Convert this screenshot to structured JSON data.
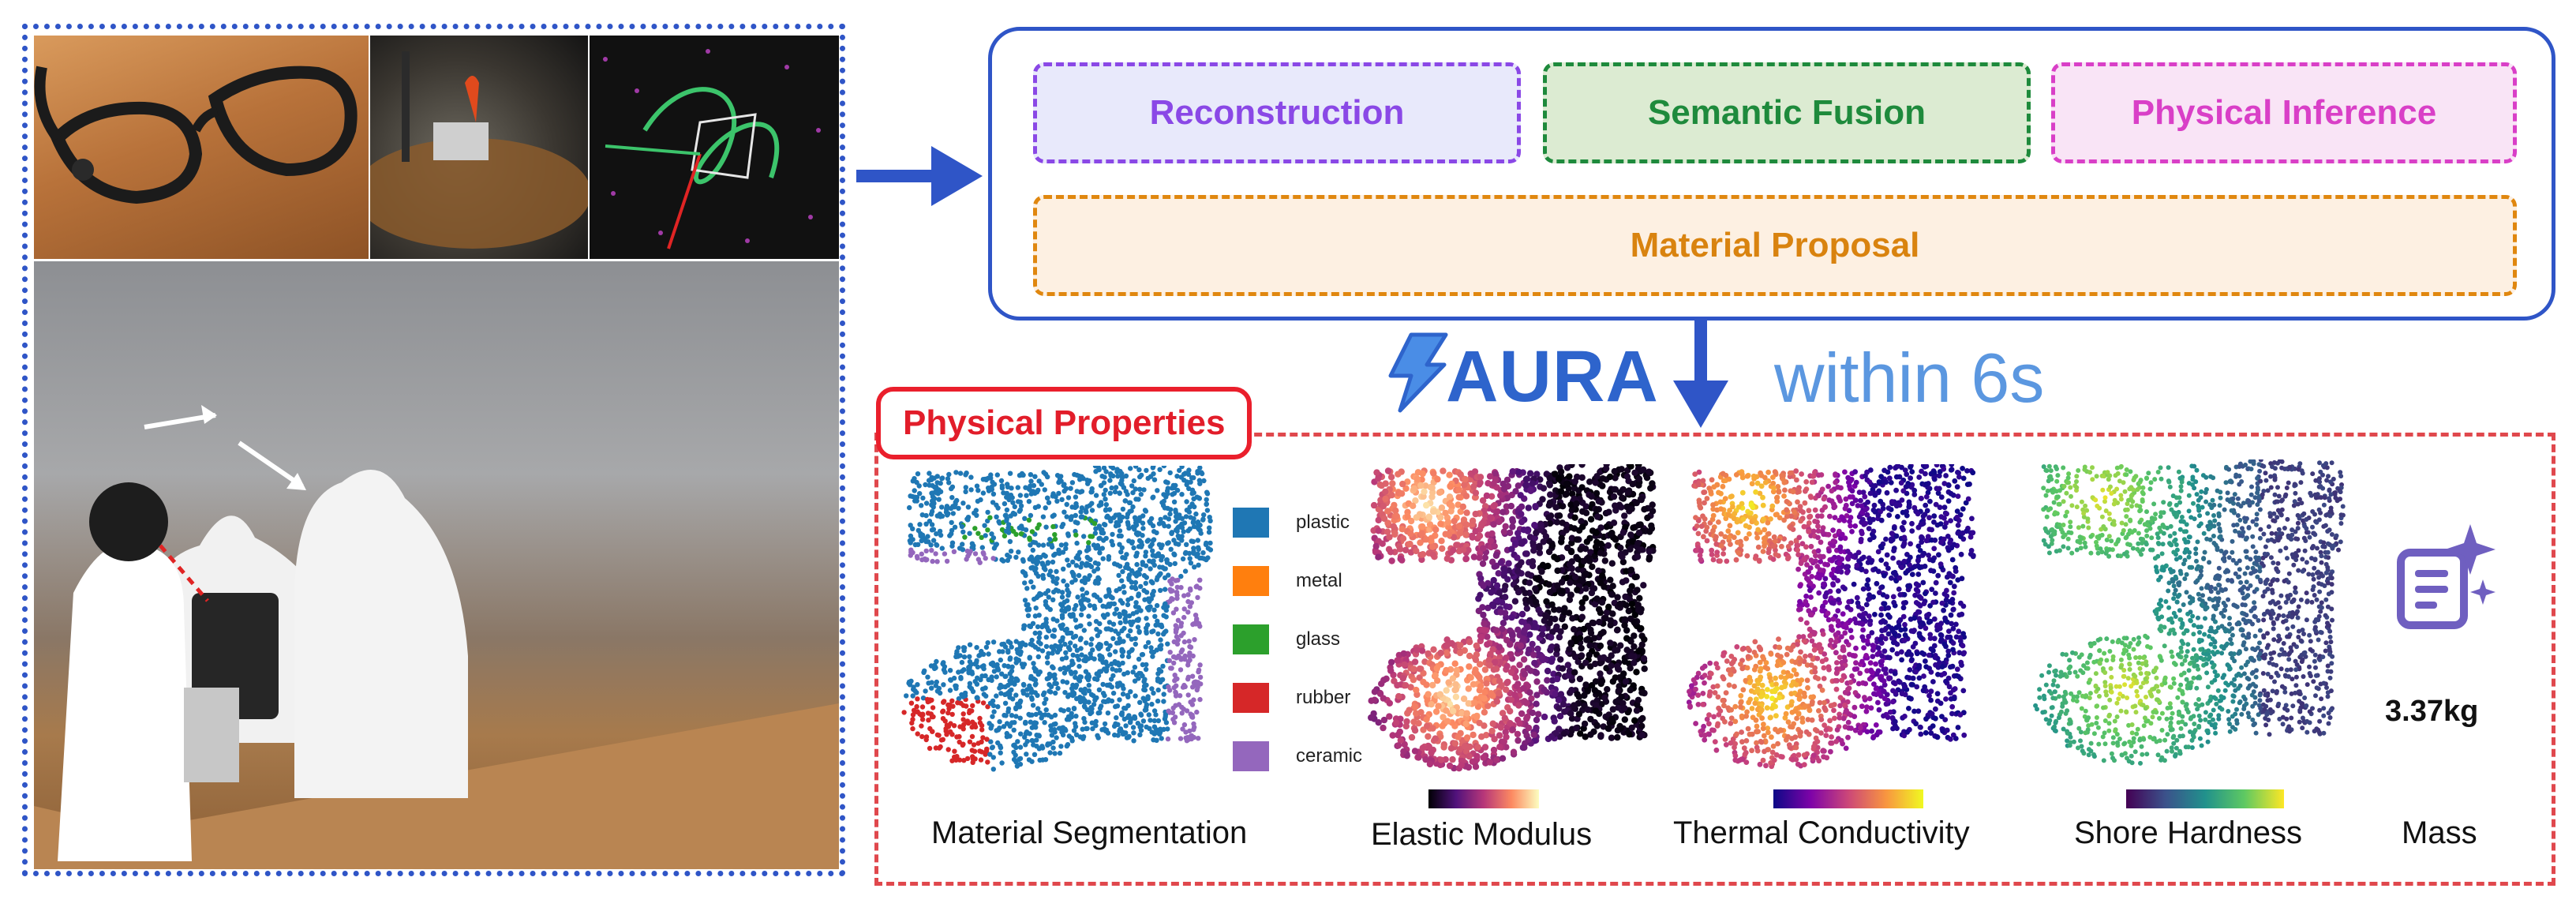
{
  "pipeline": {
    "stages": {
      "reconstruction": "Reconstruction",
      "semantic_fusion": "Semantic Fusion",
      "physical_inference": "Physical Inference",
      "material_proposal": "Material Proposal"
    }
  },
  "aura": {
    "name": "AURA",
    "timing": "within 6s"
  },
  "properties": {
    "panel_label": "Physical Properties",
    "legend": [
      {
        "label": "plastic",
        "color": "#1f77b4"
      },
      {
        "label": "metal",
        "color": "#ff7f0e"
      },
      {
        "label": "glass",
        "color": "#2ca02c"
      },
      {
        "label": "rubber",
        "color": "#d62728"
      },
      {
        "label": "ceramic",
        "color": "#9467bd"
      }
    ],
    "captions": {
      "segmentation": "Material Segmentation",
      "elastic": "Elastic Modulus",
      "thermal": "Thermal Conductivity",
      "shore": "Shore Hardness",
      "mass": "Mass"
    },
    "mass_value": "3.37kg",
    "colormaps": {
      "magma": [
        "#000004",
        "#51127c",
        "#b73779",
        "#fc8961",
        "#fcfdbf"
      ],
      "plasma": [
        "#0d0887",
        "#7e03a8",
        "#cc4778",
        "#f89540",
        "#f0f921"
      ],
      "viridis": [
        "#440154",
        "#3b528b",
        "#21918c",
        "#5ec962",
        "#fde725"
      ]
    }
  }
}
